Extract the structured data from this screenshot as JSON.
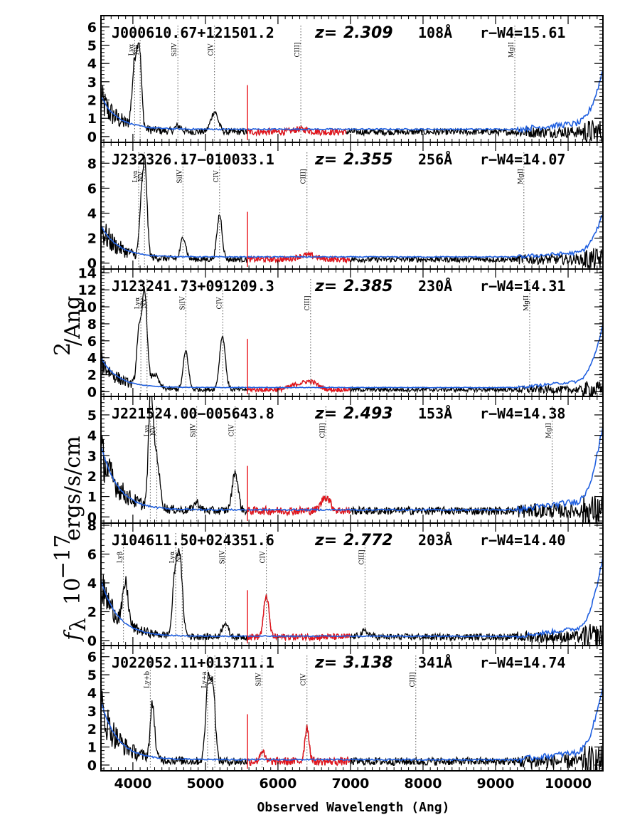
{
  "chart_data": {
    "type": "line",
    "xlabel": "Observed Wavelength (Ang)",
    "ylabel_prefix": "f",
    "ylabel_sub": "λ",
    "ylabel_main": "10",
    "ylabel_exp": "−17",
    "ylabel_rest": "ergs/s/cm",
    "ylabel_exp2": "2",
    "ylabel_tail": "/Ang",
    "xlim": [
      3560,
      10480
    ],
    "xticks": [
      4000,
      5000,
      6000,
      7000,
      8000,
      9000,
      10000
    ],
    "colors": {
      "spectrum": "#000000",
      "red_region": "#e8141c",
      "model": "#1f5fe0",
      "line_marker": "#555555"
    },
    "panels": [
      {
        "name": "J000610.67+121501.2",
        "z_label": "z=",
        "z": "2.309",
        "ew": "108Å",
        "color_label": "r−W4=15.61",
        "ylim": [
          -0.2,
          6.5
        ],
        "yticks": [
          0,
          1,
          2,
          3,
          4,
          5,
          6
        ],
        "red_range": [
          5580,
          6950
        ],
        "lines": [
          {
            "label": "Lyα",
            "x": 4025
          },
          {
            "label": "NV",
            "x": 4100
          },
          {
            "label": "SiIV",
            "x": 4620
          },
          {
            "label": "CIV",
            "x": 5125
          },
          {
            "label": "CIII]",
            "x": 6315
          },
          {
            "label": "MgII",
            "x": 9265
          }
        ],
        "peaks": [
          [
            4025,
            3.4,
            35
          ],
          [
            4090,
            4.0,
            30
          ],
          [
            4625,
            0.3,
            45
          ],
          [
            5125,
            1.1,
            50
          ],
          [
            6315,
            0.15,
            100
          ]
        ],
        "baseline": 0.25,
        "noise": 0.35,
        "blue_start": 2.2,
        "blue_level": 0.4,
        "blue_end": 1.9
      },
      {
        "name": "J232326.17−010033.1",
        "z_label": "z=",
        "z": "2.355",
        "ew": "256Å",
        "color_label": "r−W4=14.07",
        "ylim": [
          -0.3,
          9.5
        ],
        "yticks": [
          0,
          2,
          4,
          6,
          8
        ],
        "red_range": [
          5580,
          7000
        ],
        "lines": [
          {
            "label": "Lyα",
            "x": 4080
          },
          {
            "label": "NV",
            "x": 4160
          },
          {
            "label": "SiIV",
            "x": 4690
          },
          {
            "label": "CIV",
            "x": 5195
          },
          {
            "label": "CIII]",
            "x": 6400
          },
          {
            "label": "MgII",
            "x": 9390
          }
        ],
        "peaks": [
          [
            4165,
            7.5,
            30
          ],
          [
            4110,
            3.2,
            25
          ],
          [
            4695,
            1.8,
            35
          ],
          [
            5195,
            3.6,
            35
          ],
          [
            6400,
            0.35,
            120
          ]
        ],
        "baseline": 0.3,
        "noise": 0.45,
        "blue_start": 3.0,
        "blue_level": 0.5,
        "blue_end": 2.0
      },
      {
        "name": "J123241.73+091209.3",
        "z_label": "z=",
        "z": "2.385",
        "ew": "230Å",
        "color_label": "r−W4=14.31",
        "ylim": [
          -0.3,
          14.2
        ],
        "yticks": [
          0,
          2,
          4,
          6,
          8,
          10,
          12,
          14
        ],
        "red_range": [
          5580,
          7000
        ],
        "lines": [
          {
            "label": "Lyα",
            "x": 4110
          },
          {
            "label": "NV",
            "x": 4195
          },
          {
            "label": "SiIV",
            "x": 4730
          },
          {
            "label": "CIV",
            "x": 5240
          },
          {
            "label": "CIII]",
            "x": 6450
          },
          {
            "label": "MgII",
            "x": 9470
          }
        ],
        "peaks": [
          [
            4160,
            11.5,
            35
          ],
          [
            4080,
            6.0,
            30
          ],
          [
            4300,
            1.6,
            50
          ],
          [
            4730,
            4.5,
            35
          ],
          [
            5235,
            6.3,
            40
          ],
          [
            6450,
            0.9,
            100
          ],
          [
            6250,
            0.5,
            100
          ]
        ],
        "baseline": 0.25,
        "noise": 0.5,
        "blue_start": 4.0,
        "blue_level": 0.5,
        "blue_end": 4.3
      },
      {
        "name": "J221524.00−005643.8",
        "z_label": "z=",
        "z": "2.493",
        "ew": "153Å",
        "color_label": "r−W4=14.38",
        "ylim": [
          -0.2,
          5.8
        ],
        "yticks": [
          0,
          1,
          2,
          3,
          4,
          5
        ],
        "red_range": [
          5580,
          7000
        ],
        "lines": [
          {
            "label": "Lyα",
            "x": 4240
          },
          {
            "label": "NV",
            "x": 4330
          },
          {
            "label": "SiIV",
            "x": 4880
          },
          {
            "label": "CIV",
            "x": 5410
          },
          {
            "label": "CIII]",
            "x": 6660
          },
          {
            "label": "MgII",
            "x": 9780
          }
        ],
        "peaks": [
          [
            4245,
            5.2,
            30
          ],
          [
            4320,
            2.6,
            45
          ],
          [
            4880,
            0.4,
            40
          ],
          [
            5410,
            1.9,
            40
          ],
          [
            6660,
            0.7,
            60
          ]
        ],
        "baseline": 0.3,
        "noise": 0.4,
        "blue_start": 3.5,
        "blue_level": 0.35,
        "blue_end": 2.4
      },
      {
        "name": "J104611.50+024351.6",
        "z_label": "z=",
        "z": "2.772",
        "ew": "203Å",
        "color_label": "r−W4=14.40",
        "ylim": [
          -0.2,
          8.0
        ],
        "yticks": [
          0,
          2,
          4,
          6,
          8
        ],
        "red_range": [
          5580,
          7000
        ],
        "lines": [
          {
            "label": "Lyβ",
            "x": 3870
          },
          {
            "label": "Lyα",
            "x": 4590
          },
          {
            "label": "NV",
            "x": 4680
          },
          {
            "label": "SiIV",
            "x": 5280
          },
          {
            "label": "CIV",
            "x": 5840
          },
          {
            "label": "CIII]",
            "x": 7200
          }
        ],
        "peaks": [
          [
            3900,
            2.8,
            35
          ],
          [
            4640,
            5.8,
            40
          ],
          [
            4570,
            3.0,
            30
          ],
          [
            5270,
            1.0,
            40
          ],
          [
            5840,
            2.9,
            35
          ],
          [
            7200,
            0.35,
            60
          ]
        ],
        "baseline": 0.25,
        "noise": 0.45,
        "blue_start": 4.2,
        "blue_level": 0.3,
        "blue_end": 3.2
      },
      {
        "name": "J022052.11+013711.1",
        "z_label": "z=",
        "z": "3.138",
        "ew": "341Å",
        "color_label": "r−W4=14.74",
        "ylim": [
          -0.2,
          6.5
        ],
        "yticks": [
          0,
          1,
          2,
          3,
          4,
          5,
          6
        ],
        "red_range": [
          5580,
          7000
        ],
        "lines": [
          {
            "label": "Ly+b",
            "x": 4240
          },
          {
            "label": "Ly+a",
            "x": 5030
          },
          {
            "label": "NV",
            "x": 5130
          },
          {
            "label": "SiIV",
            "x": 5780
          },
          {
            "label": "CIV",
            "x": 6400
          },
          {
            "label": "CIII]",
            "x": 7900
          }
        ],
        "peaks": [
          [
            4270,
            3.0,
            30
          ],
          [
            5040,
            4.6,
            35
          ],
          [
            5110,
            3.6,
            30
          ],
          [
            5780,
            0.6,
            30
          ],
          [
            6400,
            1.9,
            30
          ]
        ],
        "baseline": 0.2,
        "noise": 0.45,
        "blue_start": 3.5,
        "blue_level": 0.3,
        "blue_end": 2.4
      }
    ]
  }
}
